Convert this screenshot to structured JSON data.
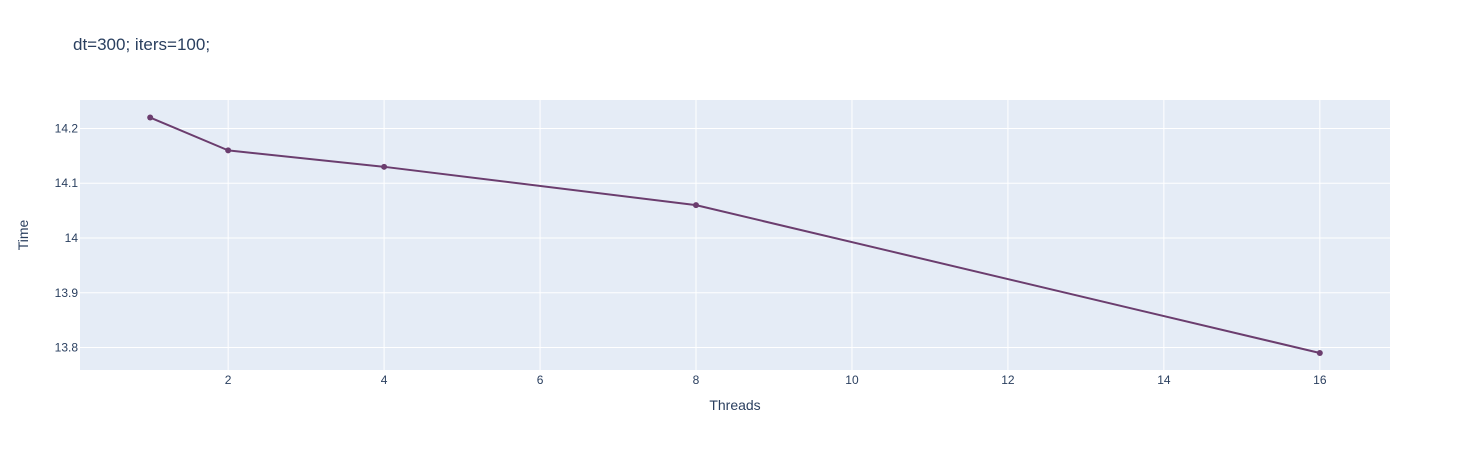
{
  "chart_data": {
    "type": "line",
    "title": "dt=300; iters=100;",
    "xlabel": "Threads",
    "ylabel": "Time",
    "xlim": [
      0.1,
      16.9
    ],
    "ylim": [
      13.759,
      14.252
    ],
    "x_ticks": [
      2,
      4,
      6,
      8,
      10,
      12,
      14,
      16
    ],
    "x_tick_labels": [
      "2",
      "4",
      "6",
      "8",
      "10",
      "12",
      "14",
      "16"
    ],
    "y_ticks": [
      13.8,
      13.9,
      14.0,
      14.1,
      14.2
    ],
    "y_tick_labels": [
      "13.8",
      "13.9",
      "14",
      "14.1",
      "14.2"
    ],
    "grid": true,
    "legend": false,
    "series": [
      {
        "x": [
          1,
          2,
          4,
          8,
          16
        ],
        "y": [
          14.22,
          14.16,
          14.13,
          14.06,
          13.79
        ],
        "mode": "lines+markers"
      }
    ],
    "colors": {
      "plot_bg": "#e5ecf6",
      "line": "#6b3d6e",
      "text": "#2a3f5f"
    }
  }
}
